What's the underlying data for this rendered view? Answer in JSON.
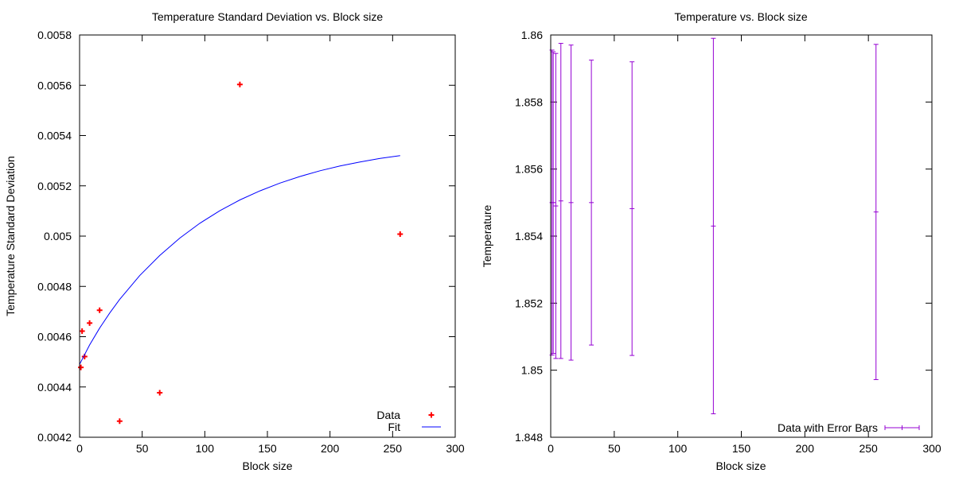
{
  "chart_data": [
    {
      "type": "scatter",
      "title": "Temperature Standard Deviation vs. Block size",
      "xlabel": "Block size",
      "ylabel": "Temperature Standard Deviation",
      "xlim": [
        0,
        300
      ],
      "ylim": [
        0.0042,
        0.0058
      ],
      "xticks": [
        0,
        50,
        100,
        150,
        200,
        250,
        300
      ],
      "xtick_labels": [
        "0",
        "50",
        "100",
        "150",
        "200",
        "250",
        "300"
      ],
      "yticks": [
        0.0042,
        0.0044,
        0.0046,
        0.0048,
        0.005,
        0.0052,
        0.0054,
        0.0056,
        0.0058
      ],
      "ytick_labels": [
        "0.0042",
        "0.0044",
        "0.0046",
        "0.0048",
        "0.005",
        "0.0052",
        "0.0054",
        "0.0056",
        "0.0058"
      ],
      "legend_position": "bottom-right",
      "grid": false,
      "series": [
        {
          "name": "Data",
          "kind": "points",
          "marker": "plus",
          "color": "#ff0000",
          "x": [
            1,
            2,
            4,
            8,
            16,
            32,
            64,
            128,
            256
          ],
          "y": [
            0.004478,
            0.004622,
            0.004521,
            0.004654,
            0.004705,
            0.004264,
            0.004377,
            0.005603,
            0.005008
          ]
        },
        {
          "name": "Fit",
          "kind": "line",
          "color": "#0000ff",
          "x": [
            0,
            8,
            16,
            24,
            32,
            48,
            64,
            80,
            96,
            112,
            128,
            144,
            160,
            176,
            192,
            208,
            224,
            240,
            256
          ],
          "y": [
            0.00449,
            0.004567,
            0.004634,
            0.004694,
            0.004748,
            0.004843,
            0.004923,
            0.004992,
            0.005051,
            0.005101,
            0.005144,
            0.00518,
            0.005211,
            0.005237,
            0.00526,
            0.005279,
            0.005295,
            0.005309,
            0.00532
          ]
        }
      ]
    },
    {
      "type": "errorbar",
      "title": "Temperature vs. Block size",
      "xlabel": "Block size",
      "ylabel": "Temperature",
      "xlim": [
        0,
        300
      ],
      "ylim": [
        1.848,
        1.86
      ],
      "xticks": [
        0,
        50,
        100,
        150,
        200,
        250,
        300
      ],
      "xtick_labels": [
        "0",
        "50",
        "100",
        "150",
        "200",
        "250",
        "300"
      ],
      "yticks": [
        1.848,
        1.85,
        1.852,
        1.854,
        1.856,
        1.858,
        1.86
      ],
      "ytick_labels": [
        "1.848",
        "1.85",
        "1.852",
        "1.854",
        "1.856",
        "1.858",
        "1.86"
      ],
      "legend_position": "bottom-right",
      "grid": false,
      "series": [
        {
          "name": "Data with Error Bars",
          "color": "#9400d3",
          "x": [
            1,
            2,
            4,
            8,
            16,
            32,
            64,
            128,
            256
          ],
          "y": [
            1.855,
            1.855,
            1.8549,
            1.85505,
            1.855,
            1.855,
            1.85482,
            1.8543,
            1.85472
          ],
          "err": [
            0.00455,
            0.0045,
            0.00455,
            0.0047,
            0.0047,
            0.00425,
            0.00438,
            0.0056,
            0.005
          ]
        }
      ]
    }
  ]
}
